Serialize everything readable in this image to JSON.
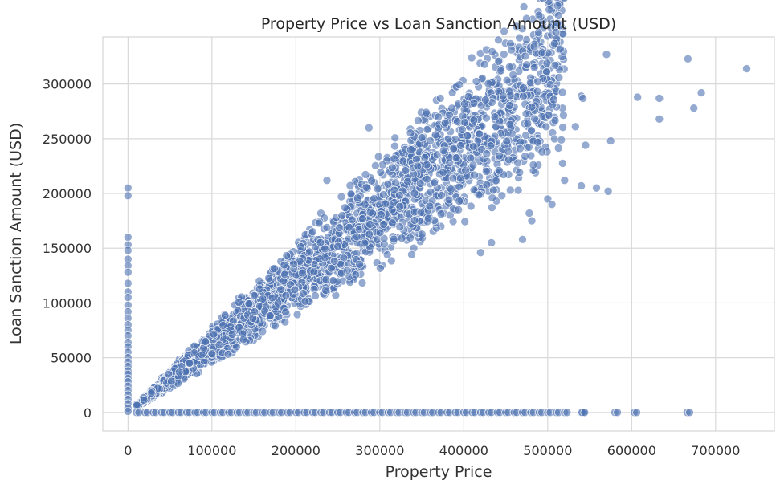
{
  "chart_data": {
    "type": "scatter",
    "title": "Property Price vs Loan Sanction Amount (USD)",
    "xlabel": "Property Price",
    "ylabel": "Loan Sanction Amount (USD)",
    "xlim": [
      -30000,
      770000
    ],
    "ylim": [
      -17000,
      343000
    ],
    "xticks": [
      0,
      100000,
      200000,
      300000,
      400000,
      500000,
      600000,
      700000
    ],
    "yticks": [
      0,
      50000,
      100000,
      150000,
      200000,
      250000,
      300000
    ],
    "grid": true,
    "legend": "none",
    "colors": {
      "marker": "#4c72b0",
      "marker_edge": "#ffffff",
      "grid": "#d9d9d9",
      "background": "#ffffff"
    },
    "series": [
      {
        "points_explicit": [
          [
            570000,
            327000
          ],
          [
            667000,
            323000
          ],
          [
            737000,
            314000
          ],
          [
            683000,
            292000
          ],
          [
            540000,
            289000
          ],
          [
            542000,
            287000
          ],
          [
            607000,
            288000
          ],
          [
            633000,
            287000
          ],
          [
            481000,
            279000
          ],
          [
            674000,
            278000
          ],
          [
            437000,
            270000
          ],
          [
            455000,
            263000
          ],
          [
            412000,
            267000
          ],
          [
            498000,
            261000
          ],
          [
            633000,
            268000
          ],
          [
            533000,
            261000
          ],
          [
            287000,
            260000
          ],
          [
            350000,
            251000
          ],
          [
            575000,
            248000
          ],
          [
            360000,
            248000
          ],
          [
            545000,
            244000
          ],
          [
            388000,
            241000
          ],
          [
            337000,
            240000
          ],
          [
            376000,
            239000
          ],
          [
            572000,
            202000
          ],
          [
            237000,
            212000
          ],
          [
            220000,
            165000
          ],
          [
            540000,
            207000
          ],
          [
            558000,
            205000
          ],
          [
            520000,
            212000
          ],
          [
            500000,
            195000
          ],
          [
            505000,
            190000
          ],
          [
            478000,
            182000
          ],
          [
            481000,
            175000
          ],
          [
            470000,
            158000
          ],
          [
            433000,
            155000
          ],
          [
            420000,
            146000
          ]
        ],
        "generated_cluster": {
          "x_range": [
            10000,
            520000
          ],
          "slope_range": [
            0.42,
            0.8
          ],
          "count": 2600
        },
        "zero_loan_points": {
          "x_values": [
            10000,
            20000,
            30000,
            40000,
            50000,
            60000,
            70000,
            80000,
            90000,
            100000,
            110000,
            120000,
            130000,
            140000,
            150000,
            160000,
            170000,
            180000,
            190000,
            200000,
            210000,
            220000,
            230000,
            240000,
            250000,
            260000,
            270000,
            280000,
            290000,
            300000,
            310000,
            320000,
            330000,
            340000,
            350000,
            360000,
            370000,
            380000,
            390000,
            400000,
            410000,
            420000,
            430000,
            440000,
            450000,
            460000,
            470000,
            480000,
            490000,
            500000,
            510000,
            520000,
            540000,
            541000,
            580000,
            603000,
            666000
          ]
        },
        "zero_price_points": {
          "y_values": [
            205000,
            198000,
            160000,
            153000,
            148000,
            140000,
            134000,
            128000,
            118000,
            110000,
            105000,
            98000,
            92000,
            86000,
            80000,
            75000,
            70000,
            64000,
            60000,
            55000,
            50000,
            46000,
            42000,
            38000,
            35000,
            31000,
            28000,
            24000,
            20000,
            16000,
            12000,
            8000,
            4000,
            1000
          ]
        }
      }
    ]
  }
}
